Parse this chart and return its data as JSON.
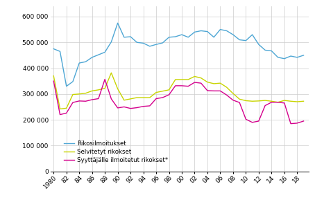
{
  "years": [
    1980,
    1981,
    1982,
    1983,
    1984,
    1985,
    1986,
    1987,
    1988,
    1989,
    1990,
    1991,
    1992,
    1993,
    1994,
    1995,
    1996,
    1997,
    1998,
    1999,
    2000,
    2001,
    2002,
    2003,
    2004,
    2005,
    2006,
    2007,
    2008,
    2009,
    2010,
    2011,
    2012,
    2013,
    2014,
    2015,
    2016,
    2017,
    2018,
    2019
  ],
  "rikosilmoitukset": [
    475000,
    465000,
    330000,
    348000,
    420000,
    425000,
    442000,
    452000,
    462000,
    502000,
    575000,
    520000,
    522000,
    500000,
    497000,
    485000,
    492000,
    498000,
    520000,
    522000,
    530000,
    520000,
    540000,
    545000,
    542000,
    520000,
    550000,
    545000,
    530000,
    510000,
    507000,
    530000,
    492000,
    470000,
    467000,
    442000,
    437000,
    447000,
    442000,
    450000
  ],
  "selvitetyt": [
    370000,
    242000,
    245000,
    298000,
    300000,
    303000,
    312000,
    316000,
    322000,
    382000,
    320000,
    276000,
    281000,
    286000,
    286000,
    286000,
    306000,
    311000,
    316000,
    356000,
    356000,
    356000,
    368000,
    362000,
    346000,
    340000,
    342000,
    326000,
    302000,
    280000,
    274000,
    272000,
    273000,
    275000,
    272000,
    268000,
    275000,
    272000,
    270000,
    272000
  ],
  "syyttajalle": [
    350000,
    220000,
    226000,
    267000,
    273000,
    272000,
    278000,
    282000,
    357000,
    281000,
    246000,
    250000,
    244000,
    247000,
    252000,
    254000,
    282000,
    286000,
    297000,
    332000,
    332000,
    330000,
    345000,
    342000,
    313000,
    312000,
    312000,
    296000,
    276000,
    267000,
    202000,
    190000,
    195000,
    255000,
    268000,
    268000,
    265000,
    185000,
    187000,
    195000
  ],
  "blue_color": "#4da6d4",
  "green_color": "#c8d400",
  "magenta_color": "#d4008c",
  "bg_color": "#ffffff",
  "grid_color": "#cccccc",
  "yticks": [
    0,
    100000,
    200000,
    300000,
    400000,
    500000,
    600000
  ],
  "xtick_labels": [
    "1980",
    "82",
    "84",
    "86",
    "88",
    "90",
    "92",
    "94",
    "96",
    "98",
    "00",
    "02",
    "04",
    "06",
    "08",
    "10",
    "12",
    "14",
    "16",
    "18"
  ],
  "xtick_years": [
    1980,
    1982,
    1984,
    1986,
    1988,
    1990,
    1992,
    1994,
    1996,
    1998,
    2000,
    2002,
    2004,
    2006,
    2008,
    2010,
    2012,
    2014,
    2016,
    2018
  ],
  "legend_labels": [
    "Rikosilmoitukset",
    "Selvitetyt rikokset",
    "Syyttäjälle ilmoitetut rikokset*"
  ],
  "ylim": [
    0,
    640000
  ],
  "xlim": [
    1979.5,
    2019.8
  ]
}
